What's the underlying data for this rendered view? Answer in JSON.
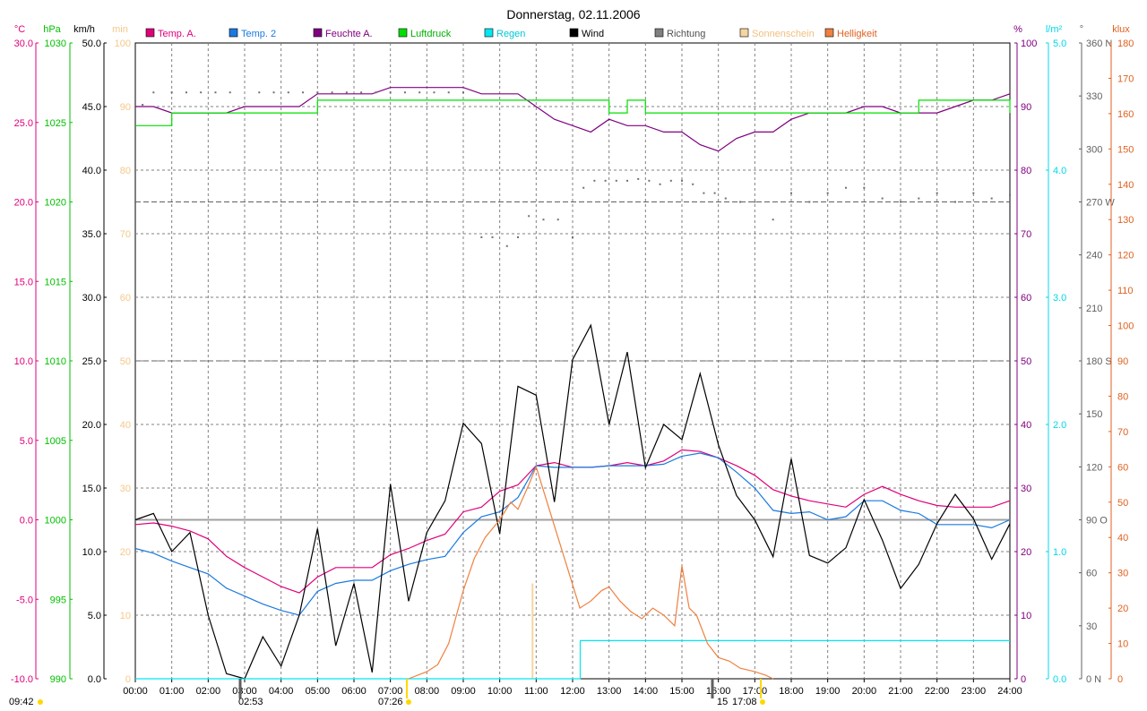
{
  "chart_data": {
    "type": "line",
    "title": "Donnerstag, 02.11.2006",
    "x_range": [
      0,
      24
    ],
    "x_ticks": [
      "00:00",
      "01:00",
      "02:00",
      "03:00",
      "04:00",
      "05:00",
      "06:00",
      "07:00",
      "08:00",
      "09:00",
      "10:00",
      "11:00",
      "12:00",
      "13:00",
      "14:00",
      "15:00",
      "16:00",
      "17:00",
      "18:00",
      "19:00",
      "20:00",
      "21:00",
      "22:00",
      "23:00",
      "24:00"
    ],
    "axes": {
      "temp": {
        "unit": "°C",
        "color": "#e0007a",
        "range": [
          -10,
          30
        ],
        "ticks": [
          "-10.0",
          "-5.0",
          "0.0",
          "5.0",
          "10.0",
          "15.0",
          "20.0",
          "25.0",
          "30.0"
        ]
      },
      "pressure": {
        "unit": "hPa",
        "color": "#00c000",
        "range": [
          990,
          1030
        ],
        "ticks": [
          "990",
          "995",
          "1000",
          "1005",
          "1010",
          "1015",
          "1020",
          "1025",
          "1030"
        ]
      },
      "wind": {
        "unit": "km/h",
        "color": "#000000",
        "range": [
          0,
          50
        ],
        "ticks": [
          "0.0",
          "5.0",
          "10.0",
          "15.0",
          "20.0",
          "25.0",
          "30.0",
          "35.0",
          "40.0",
          "45.0",
          "50.0"
        ]
      },
      "sun": {
        "unit": "min",
        "color": "#f5c88a",
        "range": [
          0,
          100
        ],
        "ticks": [
          "0",
          "10",
          "20",
          "30",
          "40",
          "50",
          "60",
          "70",
          "80",
          "90",
          "100"
        ]
      },
      "humidity": {
        "unit": "%",
        "color": "#800080",
        "range": [
          0,
          100
        ],
        "ticks": [
          "0",
          "10",
          "20",
          "30",
          "40",
          "50",
          "60",
          "70",
          "80",
          "90",
          "100"
        ]
      },
      "rain": {
        "unit": "l/m²",
        "color": "#00d8e8",
        "range": [
          0,
          5
        ],
        "ticks": [
          "0.0",
          "1.0",
          "2.0",
          "3.0",
          "4.0",
          "5.0"
        ]
      },
      "direction": {
        "unit": "°",
        "color": "#606060",
        "range": [
          0,
          360
        ],
        "ticks": [
          "0 N",
          "30",
          "60",
          "90 O",
          "120",
          "150",
          "180 S",
          "210",
          "240",
          "270 W",
          "300",
          "330",
          "360 N"
        ]
      },
      "light": {
        "unit": "klux",
        "color": "#e06020",
        "range": [
          0,
          180
        ],
        "ticks": [
          "0",
          "10",
          "20",
          "30",
          "40",
          "50",
          "60",
          "70",
          "80",
          "90",
          "100",
          "110",
          "120",
          "130",
          "140",
          "150",
          "160",
          "170",
          "180"
        ]
      }
    },
    "legend": [
      {
        "name": "Temp. A.",
        "color": "#e0007a"
      },
      {
        "name": "Temp. 2",
        "color": "#1a7ae0"
      },
      {
        "name": "Feuchte A.",
        "color": "#800080"
      },
      {
        "name": "Luftdruck",
        "color": "#00e000"
      },
      {
        "name": "Regen",
        "color": "#00e8f0"
      },
      {
        "name": "Wind",
        "color": "#000000"
      },
      {
        "name": "Richtung",
        "color": "#808080"
      },
      {
        "name": "Sonnenschein",
        "color": "#f5d5a0"
      },
      {
        "name": "Helligkeit",
        "color": "#f08040"
      }
    ],
    "series": [
      {
        "name": "Temp. A.",
        "axis": "temp",
        "color": "#e0007a",
        "x": [
          0,
          0.5,
          1,
          1.5,
          2,
          2.5,
          3,
          3.5,
          4,
          4.5,
          5,
          5.5,
          6,
          6.5,
          7,
          7.5,
          8,
          8.5,
          9,
          9.5,
          10,
          10.5,
          11,
          11.5,
          12,
          12.5,
          13,
          13.5,
          14,
          14.5,
          15,
          15.5,
          16,
          16.5,
          17,
          17.5,
          18,
          18.5,
          19,
          19.5,
          20,
          20.5,
          21,
          21.5,
          22,
          22.5,
          23,
          23.5,
          24
        ],
        "y": [
          -0.3,
          -0.2,
          -0.4,
          -0.7,
          -1.2,
          -2.3,
          -3.0,
          -3.6,
          -4.2,
          -4.6,
          -3.6,
          -3.0,
          -3.0,
          -3.0,
          -2.2,
          -1.8,
          -1.3,
          -0.9,
          0.5,
          0.8,
          1.8,
          2.2,
          3.4,
          3.6,
          3.3,
          3.3,
          3.4,
          3.6,
          3.4,
          3.7,
          4.4,
          4.3,
          3.9,
          3.4,
          2.8,
          1.9,
          1.5,
          1.2,
          1.0,
          0.8,
          1.6,
          2.1,
          1.6,
          1.2,
          0.9,
          0.8,
          0.8,
          0.8,
          1.2
        ]
      },
      {
        "name": "Temp. 2",
        "axis": "temp",
        "color": "#1a7ae0",
        "x": [
          0,
          0.5,
          1,
          1.5,
          2,
          2.5,
          3,
          3.5,
          4,
          4.5,
          5,
          5.5,
          6,
          6.5,
          7,
          7.5,
          8,
          8.5,
          9,
          9.5,
          10,
          10.5,
          11,
          11.5,
          12,
          12.5,
          13,
          13.5,
          14,
          14.5,
          15,
          15.5,
          16,
          16.5,
          17,
          17.5,
          18,
          18.5,
          19,
          19.5,
          20,
          20.5,
          21,
          21.5,
          22,
          22.5,
          23,
          23.5,
          24
        ],
        "y": [
          -1.8,
          -2.1,
          -2.6,
          -3.0,
          -3.4,
          -4.3,
          -4.8,
          -5.3,
          -5.7,
          -6.0,
          -4.5,
          -4.0,
          -3.8,
          -3.8,
          -3.2,
          -2.8,
          -2.5,
          -2.3,
          -0.8,
          0.2,
          0.5,
          1.4,
          3.4,
          3.3,
          3.3,
          3.3,
          3.4,
          3.4,
          3.4,
          3.5,
          4.0,
          4.2,
          3.9,
          3.0,
          2.0,
          0.6,
          0.4,
          0.5,
          0.0,
          0.2,
          1.2,
          1.2,
          0.6,
          0.4,
          -0.3,
          -0.3,
          -0.3,
          -0.5,
          0.0
        ]
      },
      {
        "name": "Feuchte A.",
        "axis": "humidity",
        "color": "#800080",
        "x": [
          0,
          0.5,
          1,
          1.5,
          2,
          2.5,
          3,
          3.5,
          4,
          4.5,
          5,
          5.5,
          6,
          6.5,
          7,
          7.5,
          8,
          8.5,
          9,
          9.5,
          10,
          10.5,
          11,
          11.5,
          12,
          12.5,
          13,
          13.5,
          14,
          14.5,
          15,
          15.5,
          16,
          16.5,
          17,
          17.5,
          18,
          18.5,
          19,
          19.5,
          20,
          20.5,
          21,
          21.5,
          22,
          22.5,
          23,
          23.5,
          24
        ],
        "y": [
          90,
          90,
          89,
          89,
          89,
          89,
          90,
          90,
          90,
          90,
          92,
          92,
          92,
          92,
          93,
          93,
          93,
          93,
          93,
          92,
          92,
          92,
          90,
          88,
          87,
          86,
          88,
          87,
          87,
          86,
          86,
          84,
          83,
          85,
          86,
          86,
          88,
          89,
          89,
          89,
          90,
          90,
          89,
          89,
          89,
          90,
          91,
          91,
          92
        ]
      },
      {
        "name": "Luftdruck",
        "axis": "pressure",
        "color": "#00e000",
        "x": [
          0,
          0.5,
          1,
          1.5,
          2,
          2.5,
          3,
          3.5,
          4,
          4.5,
          5,
          5.5,
          6,
          6.5,
          7,
          7.5,
          8,
          8.5,
          9,
          9.5,
          10,
          10.5,
          11,
          11.5,
          12,
          12.5,
          13,
          13.5,
          14,
          14.5,
          15,
          15.5,
          16,
          16.5,
          17,
          17.5,
          18,
          18.5,
          19,
          19.5,
          20,
          20.5,
          21,
          21.5,
          22,
          22.5,
          23,
          23.5,
          24
        ],
        "y": [
          1024.8,
          1024.8,
          1025.6,
          1025.6,
          1025.6,
          1025.6,
          1025.6,
          1025.6,
          1025.6,
          1025.6,
          1026.4,
          1026.4,
          1026.4,
          1026.4,
          1026.4,
          1026.4,
          1026.4,
          1026.4,
          1026.4,
          1026.4,
          1026.4,
          1026.4,
          1026.4,
          1026.4,
          1026.4,
          1026.4,
          1025.6,
          1026.4,
          1025.6,
          1025.6,
          1025.6,
          1025.6,
          1025.6,
          1025.6,
          1025.6,
          1025.6,
          1025.6,
          1025.6,
          1025.6,
          1025.6,
          1025.6,
          1025.6,
          1025.6,
          1026.4,
          1026.4,
          1026.4,
          1026.4,
          1026.4,
          1025.6
        ]
      },
      {
        "name": "Wind",
        "axis": "wind",
        "color": "#000000",
        "x": [
          0,
          0.5,
          1,
          1.5,
          2,
          2.5,
          3,
          3.5,
          4,
          4.5,
          5,
          5.5,
          6,
          6.5,
          7,
          7.5,
          8,
          8.5,
          9,
          9.5,
          10,
          10.5,
          11,
          11.5,
          12,
          12.5,
          13,
          13.5,
          14,
          14.5,
          15,
          15.5,
          16,
          16.5,
          17,
          17.5,
          18,
          18.5,
          19,
          19.5,
          20,
          20.5,
          21,
          21.5,
          22,
          22.5,
          23,
          23.5,
          24
        ],
        "y": [
          12.5,
          13.0,
          10.0,
          11.5,
          5.0,
          0.4,
          0.0,
          3.3,
          1.0,
          5.0,
          11.8,
          2.6,
          7.5,
          0.5,
          15.3,
          6.1,
          11.5,
          14.0,
          20.1,
          18.5,
          11.4,
          23.0,
          22.3,
          13.9,
          25.1,
          27.8,
          20.0,
          25.7,
          16.6,
          20.0,
          18.8,
          24.0,
          18.4,
          14.4,
          12.5,
          9.6,
          17.3,
          9.7,
          9.1,
          10.3,
          14.1,
          10.9,
          7.1,
          9.0,
          12.2,
          14.5,
          12.6,
          9.4,
          12.2
        ]
      },
      {
        "name": "Regen",
        "axis": "rain",
        "color": "#00e8f0",
        "x": [
          0,
          12.0,
          12.2,
          12.21,
          24
        ],
        "y": [
          0,
          0,
          0,
          0.3,
          0.3
        ]
      },
      {
        "name": "Helligkeit",
        "axis": "light",
        "color": "#f08040",
        "x": [
          7.5,
          8,
          8.3,
          8.6,
          9,
          9.3,
          9.6,
          10,
          10.3,
          10.5,
          10.8,
          11,
          11.3,
          11.6,
          11.9,
          12.2,
          12.5,
          12.8,
          13,
          13.3,
          13.6,
          13.9,
          14.2,
          14.5,
          14.8,
          15,
          15.2,
          15.4,
          15.7,
          16,
          16.3,
          16.6,
          17,
          17.3,
          17.5
        ],
        "y": [
          0,
          2,
          4,
          10,
          25,
          34,
          40,
          45,
          50,
          48,
          55,
          60,
          50,
          40,
          30,
          20,
          22,
          25,
          26,
          22,
          19,
          17,
          20,
          18,
          15,
          32,
          20,
          18,
          10,
          6,
          5,
          3,
          2,
          1,
          0
        ]
      },
      {
        "name": "Richtung",
        "axis": "direction",
        "color": "#707070",
        "x": [
          0.2,
          0.5,
          1,
          1.4,
          1.8,
          2.2,
          2.6,
          3.4,
          3.8,
          4.2,
          4.6,
          5,
          5.4,
          5.8,
          6.2,
          6.6,
          7,
          7.4,
          7.8,
          8.2,
          8.6,
          9,
          9.5,
          9.8,
          10.2,
          10.5,
          10.8,
          11.2,
          11.6,
          12,
          12.3,
          12.6,
          12.9,
          13.2,
          13.5,
          13.8,
          14.1,
          14.4,
          14.7,
          15,
          15.3,
          15.6,
          15.9,
          16.2,
          16.6,
          17,
          17.5,
          18,
          18.5,
          19,
          19.5,
          20,
          20.5,
          21,
          21.5,
          22,
          22.5,
          23,
          23.5,
          24
        ],
        "y": [
          325,
          332,
          332,
          332,
          332,
          332,
          332,
          332,
          332,
          332,
          332,
          332,
          332,
          332,
          332,
          332,
          332,
          332,
          332,
          332,
          332,
          332,
          250,
          250,
          245,
          250,
          262,
          260,
          260,
          250,
          278,
          282,
          282,
          282,
          282,
          283,
          282,
          280,
          282,
          282,
          280,
          275,
          275,
          272,
          270,
          270,
          260,
          275,
          270,
          275,
          278,
          278,
          272,
          270,
          272,
          275,
          270,
          275,
          272,
          274
        ]
      }
    ],
    "bars": [
      {
        "name": "Sonnenschein",
        "axis": "sun",
        "color": "#f5d5a0",
        "x": [
          10.9
        ],
        "values": [
          15
        ]
      }
    ],
    "reference_lines": [
      {
        "axis": "temp",
        "value": 0.0,
        "color": "#a0a0a0"
      }
    ],
    "markers": {
      "bottom_left": "09:42",
      "sunrise": "02:53",
      "moonrise": "07:26",
      "sunset_left": "15",
      "sunset": "17:08"
    }
  }
}
